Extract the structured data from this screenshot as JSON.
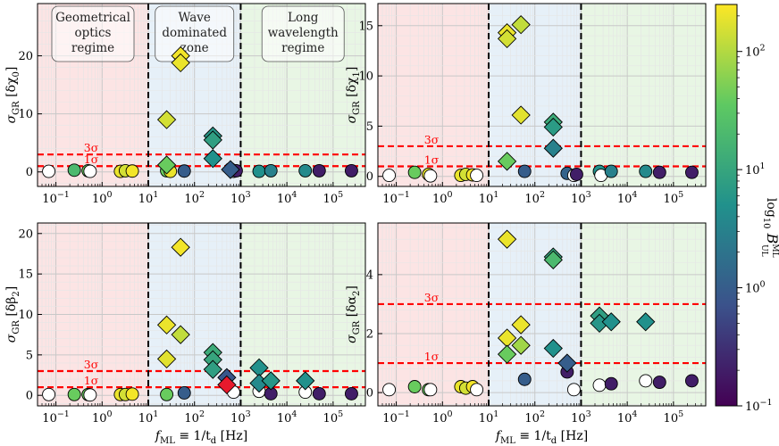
{
  "figure": {
    "colorbar": {
      "label": "log₁₀ 𝓑ᴸᴿᴜʟ",
      "label_main": "log",
      "label_sub": "10",
      "label_b": "B",
      "label_sup": "ML",
      "label_subscript": "UL",
      "ticks": [
        {
          "value": 100,
          "base": "10",
          "exp": "2"
        },
        {
          "value": 10,
          "base": "10",
          "exp": "1"
        },
        {
          "value": 1,
          "base": "10",
          "exp": "0"
        },
        {
          "value": 0.1,
          "base": "10",
          "exp": "−1"
        }
      ],
      "range": [
        0.1,
        250
      ],
      "colors": [
        "#440154",
        "#3b528b",
        "#21918c",
        "#5ec962",
        "#fde725"
      ]
    },
    "regions": {
      "geometric": {
        "label_lines": [
          "Geometrical",
          "optics",
          "regime"
        ],
        "color": "#fce4e4"
      },
      "wave": {
        "label_lines": [
          "Wave",
          "dominated",
          "zone"
        ],
        "color": "#e6f0f8"
      },
      "long": {
        "label_lines": [
          "Long",
          "wavelength",
          "regime"
        ],
        "color": "#e8f6e4"
      },
      "boundaries_hz": [
        10,
        1000
      ]
    },
    "sigma_labels": {
      "one": "1σ",
      "three": "3σ"
    },
    "sigma_color": "#ff0000"
  },
  "chart_data": [
    {
      "type": "scatter",
      "panel": "top-left",
      "ylabel": "σGR [δχ0]",
      "ylabel_sym": "σ",
      "ylabel_sub": "GR",
      "ylabel_param": "[δχ",
      "ylabel_param_sub": "0",
      "ylabel_close": "]",
      "xlabel": "",
      "xscale": "log",
      "xlim": [
        0.04,
        500000
      ],
      "ylim": [
        -2.5,
        29
      ],
      "yticks": [
        0,
        10,
        20
      ],
      "xticks_exp": [
        "−1",
        "0",
        "1",
        "2",
        "3",
        "4",
        "5"
      ],
      "show_xticklabels": true,
      "show_region_labels": true,
      "sigma_lines": [
        1,
        3
      ],
      "circles": [
        {
          "x": 0.07,
          "y": 0.1,
          "b": null
        },
        {
          "x": 0.25,
          "y": 0.3,
          "b": 20
        },
        {
          "x": 0.5,
          "y": 0.2,
          "b": 40
        },
        {
          "x": 0.55,
          "y": 0.1,
          "b": null
        },
        {
          "x": 2.5,
          "y": 0.1,
          "b": 200
        },
        {
          "x": 3.2,
          "y": 0.2,
          "b": 150
        },
        {
          "x": 4.5,
          "y": 0.15,
          "b": 220
        },
        {
          "x": 25,
          "y": 0.2,
          "b": 40
        },
        {
          "x": 30,
          "y": 0.1,
          "b": 200
        },
        {
          "x": 60,
          "y": 0.15,
          "b": 1
        },
        {
          "x": 600,
          "y": 0.5,
          "b": 0.7
        },
        {
          "x": 700,
          "y": 0.1,
          "b": null
        },
        {
          "x": 800,
          "y": 0.2,
          "b": 0.2
        },
        {
          "x": 2500,
          "y": 0.1,
          "b": 5
        },
        {
          "x": 4500,
          "y": 0.2,
          "b": 3
        },
        {
          "x": 25000,
          "y": 0.2,
          "b": 4
        },
        {
          "x": 50000,
          "y": 0.2,
          "b": 0.2
        },
        {
          "x": 250000,
          "y": 0.2,
          "b": 0.2
        }
      ],
      "diamonds": [
        {
          "x": 25,
          "y": 9,
          "b": 150
        },
        {
          "x": 25,
          "y": 1.2,
          "b": 40
        },
        {
          "x": 50,
          "y": 20,
          "b": 220
        },
        {
          "x": 50,
          "y": 18.8,
          "b": 200
        },
        {
          "x": 250,
          "y": 6.2,
          "b": 6
        },
        {
          "x": 250,
          "y": 5.5,
          "b": 8
        },
        {
          "x": 250,
          "y": 2.3,
          "b": 5
        },
        {
          "x": 600,
          "y": 0.4,
          "b": 1
        }
      ]
    },
    {
      "type": "scatter",
      "panel": "top-right",
      "ylabel": "σGR [δχ1]",
      "ylabel_sym": "σ",
      "ylabel_sub": "GR",
      "ylabel_param": "[δχ",
      "ylabel_param_sub": "1",
      "ylabel_close": "]",
      "xlabel": "",
      "xscale": "log",
      "xlim": [
        0.04,
        500000
      ],
      "ylim": [
        -1,
        17.2
      ],
      "yticks": [
        0,
        5,
        10,
        15
      ],
      "xticks_exp": [
        "−1",
        "0",
        "1",
        "2",
        "3",
        "4",
        "5"
      ],
      "show_xticklabels": true,
      "show_region_labels": false,
      "sigma_lines": [
        1,
        3
      ],
      "circles": [
        {
          "x": 0.07,
          "y": 0.1,
          "b": null
        },
        {
          "x": 0.25,
          "y": 0.4,
          "b": 40
        },
        {
          "x": 0.5,
          "y": 0.2,
          "b": 200
        },
        {
          "x": 0.55,
          "y": 0.05,
          "b": null
        },
        {
          "x": 2.5,
          "y": 0.1,
          "b": 200
        },
        {
          "x": 3.2,
          "y": 0.2,
          "b": 150
        },
        {
          "x": 4.5,
          "y": 0.15,
          "b": 220
        },
        {
          "x": 5.5,
          "y": 0.1,
          "b": null
        },
        {
          "x": 60,
          "y": 0.5,
          "b": 1
        },
        {
          "x": 500,
          "y": 0.3,
          "b": 1.2
        },
        {
          "x": 700,
          "y": 0.1,
          "b": null
        },
        {
          "x": 800,
          "y": 0.2,
          "b": 0.2
        },
        {
          "x": 2500,
          "y": 0.5,
          "b": 5
        },
        {
          "x": 2700,
          "y": 0.1,
          "b": null
        },
        {
          "x": 4500,
          "y": 0.5,
          "b": 3
        },
        {
          "x": 25000,
          "y": 0.5,
          "b": 4
        },
        {
          "x": 50000,
          "y": 0.4,
          "b": 0.2
        },
        {
          "x": 250000,
          "y": 0.4,
          "b": 0.2
        }
      ],
      "diamonds": [
        {
          "x": 25,
          "y": 14.3,
          "b": 200
        },
        {
          "x": 25,
          "y": 13.7,
          "b": 150
        },
        {
          "x": 50,
          "y": 15.1,
          "b": 120
        },
        {
          "x": 50,
          "y": 6.1,
          "b": 180
        },
        {
          "x": 25,
          "y": 1.5,
          "b": 40
        },
        {
          "x": 250,
          "y": 5.4,
          "b": 12
        },
        {
          "x": 250,
          "y": 4.9,
          "b": 7
        },
        {
          "x": 250,
          "y": 2.8,
          "b": 3
        }
      ]
    },
    {
      "type": "scatter",
      "panel": "bottom-left",
      "ylabel": "σGR [δβ2]",
      "ylabel_sym": "σ",
      "ylabel_sub": "GR",
      "ylabel_param": "[δβ",
      "ylabel_param_sub": "2",
      "ylabel_close": "]",
      "xlabel": "fML ≡ 1/td [Hz]",
      "xlabel_f": "f",
      "xlabel_f_sub": "ML",
      "xlabel_mid": " ≡ 1/t",
      "xlabel_t_sub": "d",
      "xlabel_unit": " [Hz]",
      "xscale": "log",
      "xlim": [
        0.04,
        500000
      ],
      "ylim": [
        -1.3,
        21.3
      ],
      "yticks": [
        0,
        5,
        10,
        15,
        20
      ],
      "xticks_exp": [
        "−1",
        "0",
        "1",
        "2",
        "3",
        "4",
        "5"
      ],
      "show_xticklabels": true,
      "show_region_labels": false,
      "sigma_lines": [
        1,
        3
      ],
      "circles": [
        {
          "x": 0.07,
          "y": 0.1,
          "b": null
        },
        {
          "x": 0.25,
          "y": 0.1,
          "b": 40
        },
        {
          "x": 0.5,
          "y": 0.1,
          "b": 40
        },
        {
          "x": 0.55,
          "y": 0.05,
          "b": null
        },
        {
          "x": 2.5,
          "y": 0.1,
          "b": 200
        },
        {
          "x": 3.2,
          "y": 0.1,
          "b": 150
        },
        {
          "x": 4.5,
          "y": 0.15,
          "b": 220
        },
        {
          "x": 25,
          "y": 0.1,
          "b": 40
        },
        {
          "x": 60,
          "y": 0.3,
          "b": 1
        },
        {
          "x": 700,
          "y": 0.4,
          "b": null
        },
        {
          "x": 2500,
          "y": 0.5,
          "b": null
        },
        {
          "x": 4500,
          "y": 0.2,
          "b": 0.2
        },
        {
          "x": 25000,
          "y": 0.4,
          "b": null
        },
        {
          "x": 50000,
          "y": 0.2,
          "b": 0.2
        },
        {
          "x": 250000,
          "y": 0.2,
          "b": 0.2
        }
      ],
      "diamonds": [
        {
          "x": 50,
          "y": 18.3,
          "b": 220
        },
        {
          "x": 25,
          "y": 8.7,
          "b": 200
        },
        {
          "x": 50,
          "y": 7.5,
          "b": 120
        },
        {
          "x": 25,
          "y": 4.5,
          "b": 180
        },
        {
          "x": 250,
          "y": 5.3,
          "b": 12
        },
        {
          "x": 250,
          "y": 4.4,
          "b": 10
        },
        {
          "x": 250,
          "y": 3.2,
          "b": 8
        },
        {
          "x": 500,
          "y": 2.2,
          "b": 0.8
        },
        {
          "x": 500,
          "y": 1.3,
          "b": null,
          "color": "#e8192c"
        },
        {
          "x": 2500,
          "y": 3.4,
          "b": 5
        },
        {
          "x": 2500,
          "y": 1.5,
          "b": 4
        },
        {
          "x": 4500,
          "y": 1.8,
          "b": 6
        },
        {
          "x": 25000,
          "y": 1.8,
          "b": 5
        }
      ]
    },
    {
      "type": "scatter",
      "panel": "bottom-right",
      "ylabel": "σGR [δα2]",
      "ylabel_sym": "σ",
      "ylabel_sub": "GR",
      "ylabel_param": "[δα",
      "ylabel_param_sub": "2",
      "ylabel_close": "]",
      "xlabel": "fML ≡ 1/td [Hz]",
      "xlabel_f": "f",
      "xlabel_f_sub": "ML",
      "xlabel_mid": " ≡ 1/t",
      "xlabel_t_sub": "d",
      "xlabel_unit": " [Hz]",
      "xscale": "log",
      "xlim": [
        0.04,
        500000
      ],
      "ylim": [
        -0.45,
        5.75
      ],
      "yticks": [
        0,
        2,
        4
      ],
      "xticks_exp": [
        "−1",
        "0",
        "1",
        "2",
        "3",
        "4",
        "5"
      ],
      "show_xticklabels": true,
      "show_region_labels": false,
      "sigma_lines": [
        1,
        3
      ],
      "circles": [
        {
          "x": 0.07,
          "y": 0.1,
          "b": null
        },
        {
          "x": 0.25,
          "y": 0.2,
          "b": 40
        },
        {
          "x": 0.5,
          "y": 0.1,
          "b": 40
        },
        {
          "x": 0.55,
          "y": 0.1,
          "b": null
        },
        {
          "x": 2.5,
          "y": 0.2,
          "b": 200
        },
        {
          "x": 3.2,
          "y": 0.15,
          "b": 150
        },
        {
          "x": 4.5,
          "y": 0.2,
          "b": 220
        },
        {
          "x": 5.5,
          "y": 0.1,
          "b": null
        },
        {
          "x": 60,
          "y": 0.45,
          "b": 1
        },
        {
          "x": 500,
          "y": 0.7,
          "b": 0.2
        },
        {
          "x": 700,
          "y": 0.1,
          "b": null
        },
        {
          "x": 2500,
          "y": 0.25,
          "b": null
        },
        {
          "x": 4500,
          "y": 0.3,
          "b": 0.2
        },
        {
          "x": 25000,
          "y": 0.4,
          "b": null
        },
        {
          "x": 50000,
          "y": 0.35,
          "b": 0.2
        },
        {
          "x": 250000,
          "y": 0.4,
          "b": 0.2
        }
      ],
      "diamonds": [
        {
          "x": 25,
          "y": 5.2,
          "b": 200
        },
        {
          "x": 25,
          "y": 1.85,
          "b": 200
        },
        {
          "x": 25,
          "y": 1.3,
          "b": 40
        },
        {
          "x": 50,
          "y": 2.3,
          "b": 200
        },
        {
          "x": 50,
          "y": 1.6,
          "b": 80
        },
        {
          "x": 250,
          "y": 4.6,
          "b": 10
        },
        {
          "x": 250,
          "y": 4.5,
          "b": 20
        },
        {
          "x": 250,
          "y": 1.5,
          "b": 5
        },
        {
          "x": 500,
          "y": 1.0,
          "b": 1
        },
        {
          "x": 2500,
          "y": 2.6,
          "b": 8
        },
        {
          "x": 2500,
          "y": 2.35,
          "b": 6
        },
        {
          "x": 4500,
          "y": 2.4,
          "b": 5
        },
        {
          "x": 25000,
          "y": 2.4,
          "b": 5
        }
      ]
    }
  ]
}
